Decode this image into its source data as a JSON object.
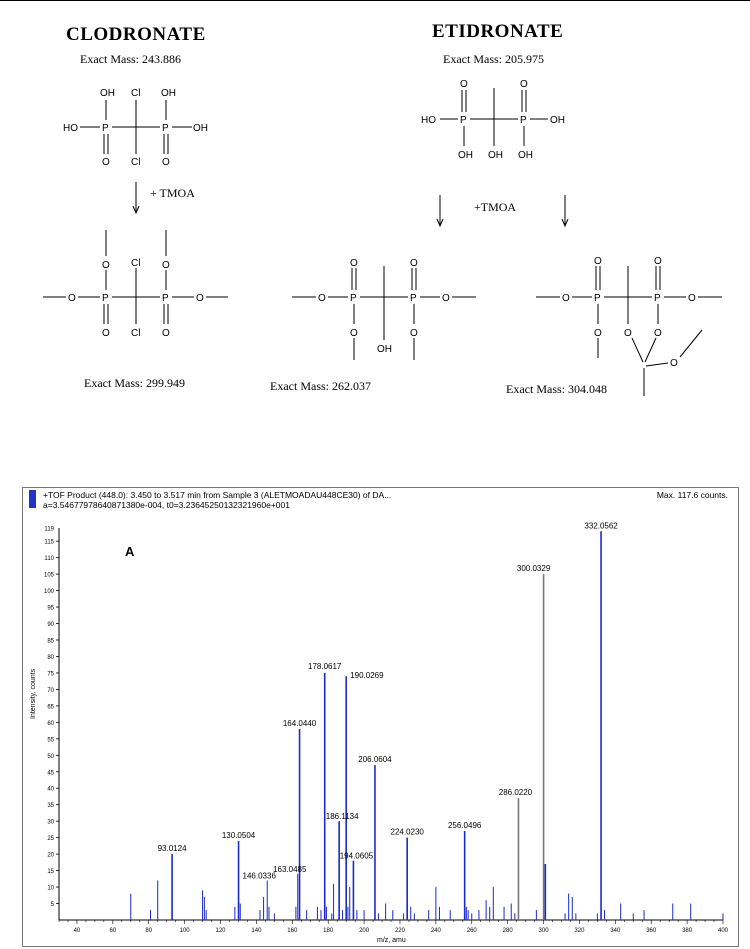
{
  "figure": {
    "clodronate": {
      "name": "CLODRONATE",
      "exact_mass_label": "Exact Mass: 243.886",
      "product_mass_label": "Exact Mass: 299.949"
    },
    "etidronate": {
      "name": "ETIDRONATE",
      "exact_mass_label": "Exact Mass: 205.975",
      "product1_mass_label": "Exact Mass: 262.037",
      "product2_mass_label": "Exact Mass: 304.048"
    },
    "reagent": "+ TMOA",
    "reagent2": "+TMOA",
    "atoms": {
      "OH": "OH",
      "HO": "HO",
      "Cl": "Cl",
      "P": "P",
      "O": "O"
    }
  },
  "spectrum": {
    "header_line1": "+TOF Product (448.0): 3.450 to 3.517 min from Sample 3 (ALETMOADAU448CE30) of DA...",
    "header_line2": "a=3.54677978640871380e-004, t0=3.23645250132321960e+001",
    "max_label": "Max. 117.6 counts.",
    "panel_label": "A",
    "legend_color": "#2233cc"
  },
  "chart_data": {
    "type": "bar",
    "title": "",
    "xlabel": "m/z, amu",
    "ylabel": "Intensity, counts",
    "xlim": [
      30,
      400
    ],
    "ylim": [
      0,
      119
    ],
    "x_ticks": [
      40,
      60,
      80,
      100,
      120,
      140,
      160,
      180,
      200,
      220,
      240,
      260,
      280,
      300,
      320,
      340,
      360,
      380,
      400
    ],
    "y_ticks": [
      5,
      10,
      15,
      20,
      25,
      30,
      35,
      40,
      45,
      50,
      55,
      60,
      65,
      70,
      75,
      80,
      85,
      90,
      95,
      100,
      105,
      110,
      115
    ],
    "y_tick_top": 119,
    "series": [
      {
        "name": "peaks",
        "x": [
          70,
          81,
          85,
          93.0124,
          110,
          111,
          112,
          128,
          130.0504,
          131,
          142,
          144,
          146.0336,
          147,
          150,
          162,
          163.0485,
          164.044,
          168,
          174,
          176,
          178.0617,
          179,
          182,
          183,
          186.1134,
          188,
          190.0269,
          191,
          192,
          194.0605,
          196,
          200,
          206.0604,
          208,
          212,
          216,
          222,
          224.023,
          226,
          228,
          236,
          240,
          242,
          248,
          256.0496,
          257,
          258,
          260,
          264,
          268,
          270,
          272,
          278,
          282,
          284,
          286.022,
          296,
          300.0329,
          301,
          312,
          314,
          316,
          318,
          330,
          332.0562,
          334,
          343,
          350,
          356,
          372,
          382,
          400
        ],
        "values": [
          8,
          3,
          12,
          20,
          9,
          7,
          3,
          4,
          24,
          5,
          3,
          7,
          12,
          4,
          2,
          4,
          14,
          58,
          3,
          4,
          3,
          75,
          4,
          2,
          11,
          30,
          3,
          74,
          4,
          10,
          18,
          3,
          3,
          47,
          2,
          5,
          3,
          2,
          25,
          4,
          2,
          3,
          10,
          4,
          3,
          27,
          4,
          3,
          2,
          3,
          6,
          4,
          10,
          4,
          5,
          2,
          37,
          3,
          105,
          17,
          2,
          8,
          7,
          2,
          2,
          118,
          3,
          5,
          2,
          3,
          5,
          5,
          2
        ],
        "colors_hint": "blue for most peaks, grey for 300.0329 and 286.0220"
      }
    ],
    "labels": [
      {
        "x": 93.0124,
        "y": 20,
        "text": "93.0124"
      },
      {
        "x": 130.0504,
        "y": 24,
        "text": "130.0504"
      },
      {
        "x": 146.0336,
        "y": 12,
        "text": "146.0336"
      },
      {
        "x": 163.0485,
        "y": 14,
        "text": "163.0485"
      },
      {
        "x": 164.044,
        "y": 58,
        "text": "164.0440"
      },
      {
        "x": 178.0617,
        "y": 75,
        "text": "178.0617"
      },
      {
        "x": 190.0269,
        "y": 74,
        "text": "190.0269"
      },
      {
        "x": 186.1134,
        "y": 30,
        "text": "186.1134"
      },
      {
        "x": 194.0605,
        "y": 18,
        "text": "194.0605"
      },
      {
        "x": 206.0604,
        "y": 47,
        "text": "206.0604"
      },
      {
        "x": 224.023,
        "y": 25,
        "text": "224.0230"
      },
      {
        "x": 256.0496,
        "y": 27,
        "text": "256.0496"
      },
      {
        "x": 286.022,
        "y": 37,
        "text": "286.0220"
      },
      {
        "x": 300.0329,
        "y": 105,
        "text": "300.0329"
      },
      {
        "x": 332.0562,
        "y": 118,
        "text": "332.0562"
      }
    ]
  }
}
